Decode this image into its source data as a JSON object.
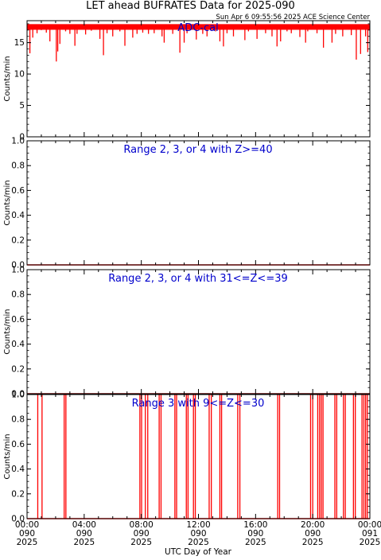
{
  "header": {
    "title": "LET ahead BUFRATES Data for 2025-090",
    "timestamp": "Sun Apr  6 09:55:56 2025 ACE Science Center"
  },
  "colors": {
    "series": "#ff0000",
    "label": "#0000cc",
    "axis": "#000000"
  },
  "chart_data": [
    {
      "type": "line",
      "title": "ADC-cal",
      "ylabel": "Counts/min",
      "ylim": [
        0,
        18.5
      ],
      "yticks": [
        "0",
        "5",
        "10",
        "15"
      ],
      "series": [
        {
          "values": {
            "base": 17.5,
            "dips": [
              [
                0.2,
                13.3
              ],
              [
                0.4,
                15.8
              ],
              [
                0.7,
                16.5
              ],
              [
                1.0,
                17.0
              ],
              [
                1.35,
                16.6
              ],
              [
                1.6,
                15.2
              ],
              [
                2.05,
                12.0
              ],
              [
                2.15,
                13.6
              ],
              [
                2.3,
                14.8
              ],
              [
                2.7,
                16.8
              ],
              [
                3.0,
                16.4
              ],
              [
                3.35,
                14.5
              ],
              [
                3.5,
                16.4
              ],
              [
                4.1,
                16.3
              ],
              [
                4.5,
                16.9
              ],
              [
                5.1,
                15.6
              ],
              [
                5.35,
                13.0
              ],
              [
                5.6,
                16.5
              ],
              [
                6.0,
                16.0
              ],
              [
                6.5,
                16.8
              ],
              [
                6.85,
                14.5
              ],
              [
                7.4,
                15.8
              ],
              [
                7.7,
                16.4
              ],
              [
                8.1,
                16.6
              ],
              [
                8.5,
                16.4
              ],
              [
                8.9,
                16.5
              ],
              [
                9.45,
                16.0
              ],
              [
                9.6,
                15.0
              ],
              [
                10.2,
                16.4
              ],
              [
                10.7,
                13.4
              ],
              [
                11.0,
                15.0
              ],
              [
                11.2,
                16.5
              ],
              [
                11.85,
                15.5
              ],
              [
                12.3,
                16.4
              ],
              [
                12.6,
                16.0
              ],
              [
                13.2,
                16.8
              ],
              [
                13.5,
                15.2
              ],
              [
                13.75,
                14.4
              ],
              [
                14.0,
                16.5
              ],
              [
                14.45,
                16.0
              ],
              [
                15.25,
                15.4
              ],
              [
                15.5,
                16.8
              ],
              [
                16.1,
                15.6
              ],
              [
                16.7,
                16.5
              ],
              [
                17.15,
                16.0
              ],
              [
                17.5,
                14.4
              ],
              [
                17.75,
                15.2
              ],
              [
                18.2,
                16.8
              ],
              [
                18.5,
                16.5
              ],
              [
                19.1,
                15.9
              ],
              [
                19.5,
                15.0
              ],
              [
                19.65,
                16.8
              ],
              [
                20.3,
                16.5
              ],
              [
                20.75,
                14.2
              ],
              [
                21.35,
                15.0
              ],
              [
                21.6,
                16.4
              ],
              [
                22.1,
                16.0
              ],
              [
                22.7,
                16.2
              ],
              [
                23.05,
                12.3
              ],
              [
                23.35,
                13.2
              ],
              [
                23.7,
                16.0
              ],
              [
                23.85,
                13.5
              ]
            ]
          }
        }
      ]
    },
    {
      "type": "line",
      "title": "Range 2, 3, or 4 with Z>=40",
      "ylabel": "Counts/min",
      "ylim": [
        0,
        1
      ],
      "yticks": [
        "0.0",
        "0.2",
        "0.4",
        "0.6",
        "0.8",
        "1.0"
      ],
      "series": [
        {
          "values": {
            "base": 0,
            "spikes": []
          }
        }
      ]
    },
    {
      "type": "line",
      "title": "Range 2, 3, or 4 with 31<=Z<=39",
      "ylabel": "Counts/min",
      "ylim": [
        0,
        1
      ],
      "yticks": [
        "0.0",
        "0.2",
        "0.4",
        "0.6",
        "0.8",
        "1.0"
      ],
      "series": [
        {
          "values": {
            "base": 0,
            "spikes": []
          }
        }
      ]
    },
    {
      "type": "line",
      "title": "Range 3 with 9<=Z<=30",
      "ylabel": "Counts/min",
      "ylim": [
        0,
        1
      ],
      "yticks": [
        "0.0",
        "0.2",
        "0.4",
        "0.6",
        "0.8",
        "1.0"
      ],
      "xlabel": "UTC Day of Year",
      "xlim": [
        0,
        24
      ],
      "xticks": [
        {
          "x": 0,
          "time": "00:00",
          "doy": "090",
          "year": "2025"
        },
        {
          "x": 4,
          "time": "04:00",
          "doy": "090",
          "year": "2025"
        },
        {
          "x": 8,
          "time": "08:00",
          "doy": "090",
          "year": "2025"
        },
        {
          "x": 12,
          "time": "12:00",
          "doy": "090",
          "year": "2025"
        },
        {
          "x": 16,
          "time": "16:00",
          "doy": "090",
          "year": "2025"
        },
        {
          "x": 20,
          "time": "20:00",
          "doy": "090",
          "year": "2025"
        },
        {
          "x": 24,
          "time": "00:00",
          "doy": "091",
          "year": "2025"
        }
      ],
      "series": [
        {
          "values": {
            "base": 0,
            "spikes": [
              [
                0.75,
                1
              ],
              [
                1.05,
                1
              ],
              [
                2.6,
                1
              ],
              [
                2.72,
                1
              ],
              [
                7.9,
                1
              ],
              [
                8.02,
                1
              ],
              [
                8.28,
                1
              ],
              [
                8.45,
                1
              ],
              [
                9.25,
                1
              ],
              [
                9.38,
                1
              ],
              [
                10.35,
                1
              ],
              [
                10.47,
                1
              ],
              [
                11.15,
                1
              ],
              [
                11.27,
                1
              ],
              [
                11.65,
                1
              ],
              [
                11.78,
                1
              ],
              [
                12.75,
                1
              ],
              [
                12.9,
                1
              ],
              [
                13.5,
                1
              ],
              [
                13.62,
                1
              ],
              [
                14.75,
                1
              ],
              [
                14.9,
                1
              ],
              [
                17.55,
                1
              ],
              [
                17.68,
                1
              ],
              [
                19.85,
                1
              ],
              [
                20.0,
                1
              ],
              [
                20.35,
                1
              ],
              [
                20.48,
                1
              ],
              [
                20.6,
                1
              ],
              [
                20.72,
                1
              ],
              [
                21.55,
                1
              ],
              [
                21.68,
                1
              ],
              [
                22.15,
                1
              ],
              [
                22.28,
                1
              ],
              [
                22.85,
                1
              ],
              [
                22.98,
                1
              ],
              [
                23.45,
                1
              ],
              [
                23.58,
                1
              ],
              [
                23.7,
                1
              ],
              [
                23.82,
                1
              ]
            ]
          }
        }
      ]
    }
  ]
}
